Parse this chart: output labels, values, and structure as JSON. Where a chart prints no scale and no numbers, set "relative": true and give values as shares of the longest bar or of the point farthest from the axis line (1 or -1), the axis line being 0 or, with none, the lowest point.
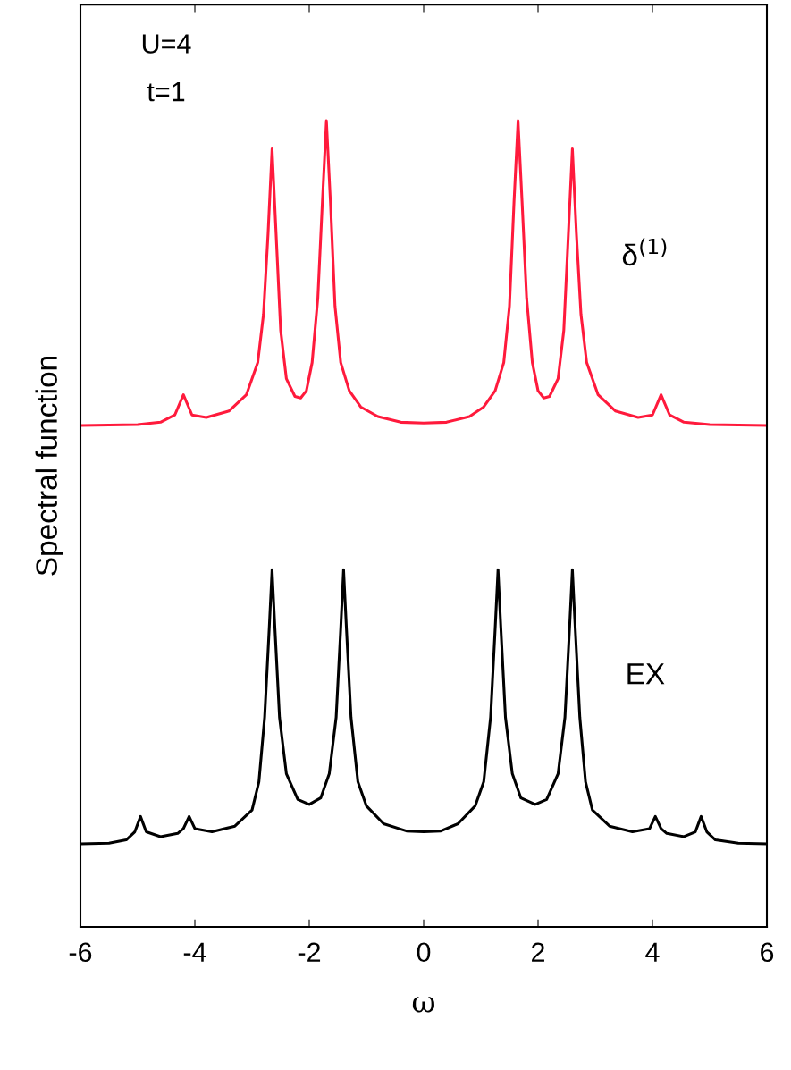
{
  "chart_data": {
    "type": "line",
    "relative": true,
    "xlabel": "ω",
    "ylabel": "Spectral function",
    "annotations": [
      "U=4",
      "t=1"
    ],
    "xlim": [
      -6,
      6
    ],
    "xticks": [
      -6,
      -4,
      -2,
      0,
      2,
      4,
      6
    ],
    "tick_labels": "x",
    "grid": false,
    "legend": false,
    "marker": "none",
    "line_style": "solid",
    "series": [
      {
        "name": "δ$^{(1)}$",
        "color": "#ff1a3c",
        "x": [
          -6,
          -5,
          -4.6,
          -4.35,
          -4.2,
          -4.05,
          -3.8,
          -3.4,
          -3.1,
          -2.9,
          -2.8,
          -2.72,
          -2.65,
          -2.58,
          -2.5,
          -2.4,
          -2.25,
          -2.15,
          -2.05,
          -1.95,
          -1.85,
          -1.77,
          -1.7,
          -1.63,
          -1.55,
          -1.45,
          -1.3,
          -1.1,
          -0.8,
          -0.4,
          0,
          0.4,
          0.8,
          1.05,
          1.25,
          1.4,
          1.5,
          1.58,
          1.65,
          1.72,
          1.8,
          1.9,
          2.0,
          2.1,
          2.2,
          2.35,
          2.45,
          2.53,
          2.6,
          2.67,
          2.75,
          2.85,
          3.05,
          3.35,
          3.75,
          4.0,
          4.15,
          4.3,
          4.55,
          5,
          6
        ],
        "values": [
          0.622,
          0.623,
          0.626,
          0.635,
          0.66,
          0.635,
          0.632,
          0.64,
          0.66,
          0.7,
          0.76,
          0.86,
          0.965,
          0.86,
          0.74,
          0.68,
          0.658,
          0.656,
          0.665,
          0.7,
          0.78,
          0.9,
          1.0,
          0.9,
          0.77,
          0.7,
          0.665,
          0.645,
          0.633,
          0.626,
          0.625,
          0.626,
          0.633,
          0.645,
          0.665,
          0.7,
          0.77,
          0.9,
          1.0,
          0.9,
          0.78,
          0.7,
          0.665,
          0.656,
          0.658,
          0.68,
          0.74,
          0.86,
          0.965,
          0.86,
          0.76,
          0.7,
          0.66,
          0.64,
          0.632,
          0.635,
          0.66,
          0.635,
          0.626,
          0.623,
          0.622
        ]
      },
      {
        "name": "EX",
        "color": "#000000",
        "x": [
          -6,
          -5.5,
          -5.2,
          -5.05,
          -4.95,
          -4.85,
          -4.6,
          -4.3,
          -4.2,
          -4.1,
          -4.0,
          -3.7,
          -3.3,
          -3.0,
          -2.88,
          -2.78,
          -2.7,
          -2.65,
          -2.6,
          -2.52,
          -2.4,
          -2.2,
          -2.0,
          -1.8,
          -1.65,
          -1.53,
          -1.45,
          -1.4,
          -1.35,
          -1.27,
          -1.15,
          -1.0,
          -0.7,
          -0.3,
          0,
          0.3,
          0.6,
          0.9,
          1.05,
          1.17,
          1.25,
          1.3,
          1.35,
          1.43,
          1.55,
          1.7,
          1.95,
          2.15,
          2.35,
          2.47,
          2.55,
          2.6,
          2.65,
          2.73,
          2.83,
          2.95,
          3.25,
          3.65,
          3.95,
          4.05,
          4.15,
          4.25,
          4.55,
          4.75,
          4.85,
          4.95,
          5.1,
          5.5,
          6
        ],
        "values": [
          0.103,
          0.104,
          0.108,
          0.118,
          0.137,
          0.118,
          0.112,
          0.116,
          0.122,
          0.137,
          0.122,
          0.118,
          0.125,
          0.145,
          0.18,
          0.26,
          0.37,
          0.443,
          0.37,
          0.26,
          0.19,
          0.158,
          0.152,
          0.16,
          0.19,
          0.26,
          0.37,
          0.443,
          0.37,
          0.26,
          0.18,
          0.15,
          0.128,
          0.119,
          0.118,
          0.119,
          0.128,
          0.15,
          0.18,
          0.26,
          0.37,
          0.443,
          0.37,
          0.26,
          0.19,
          0.16,
          0.152,
          0.158,
          0.19,
          0.26,
          0.37,
          0.443,
          0.37,
          0.26,
          0.18,
          0.145,
          0.125,
          0.118,
          0.122,
          0.137,
          0.122,
          0.116,
          0.112,
          0.118,
          0.137,
          0.118,
          0.108,
          0.104,
          0.103
        ]
      }
    ]
  }
}
